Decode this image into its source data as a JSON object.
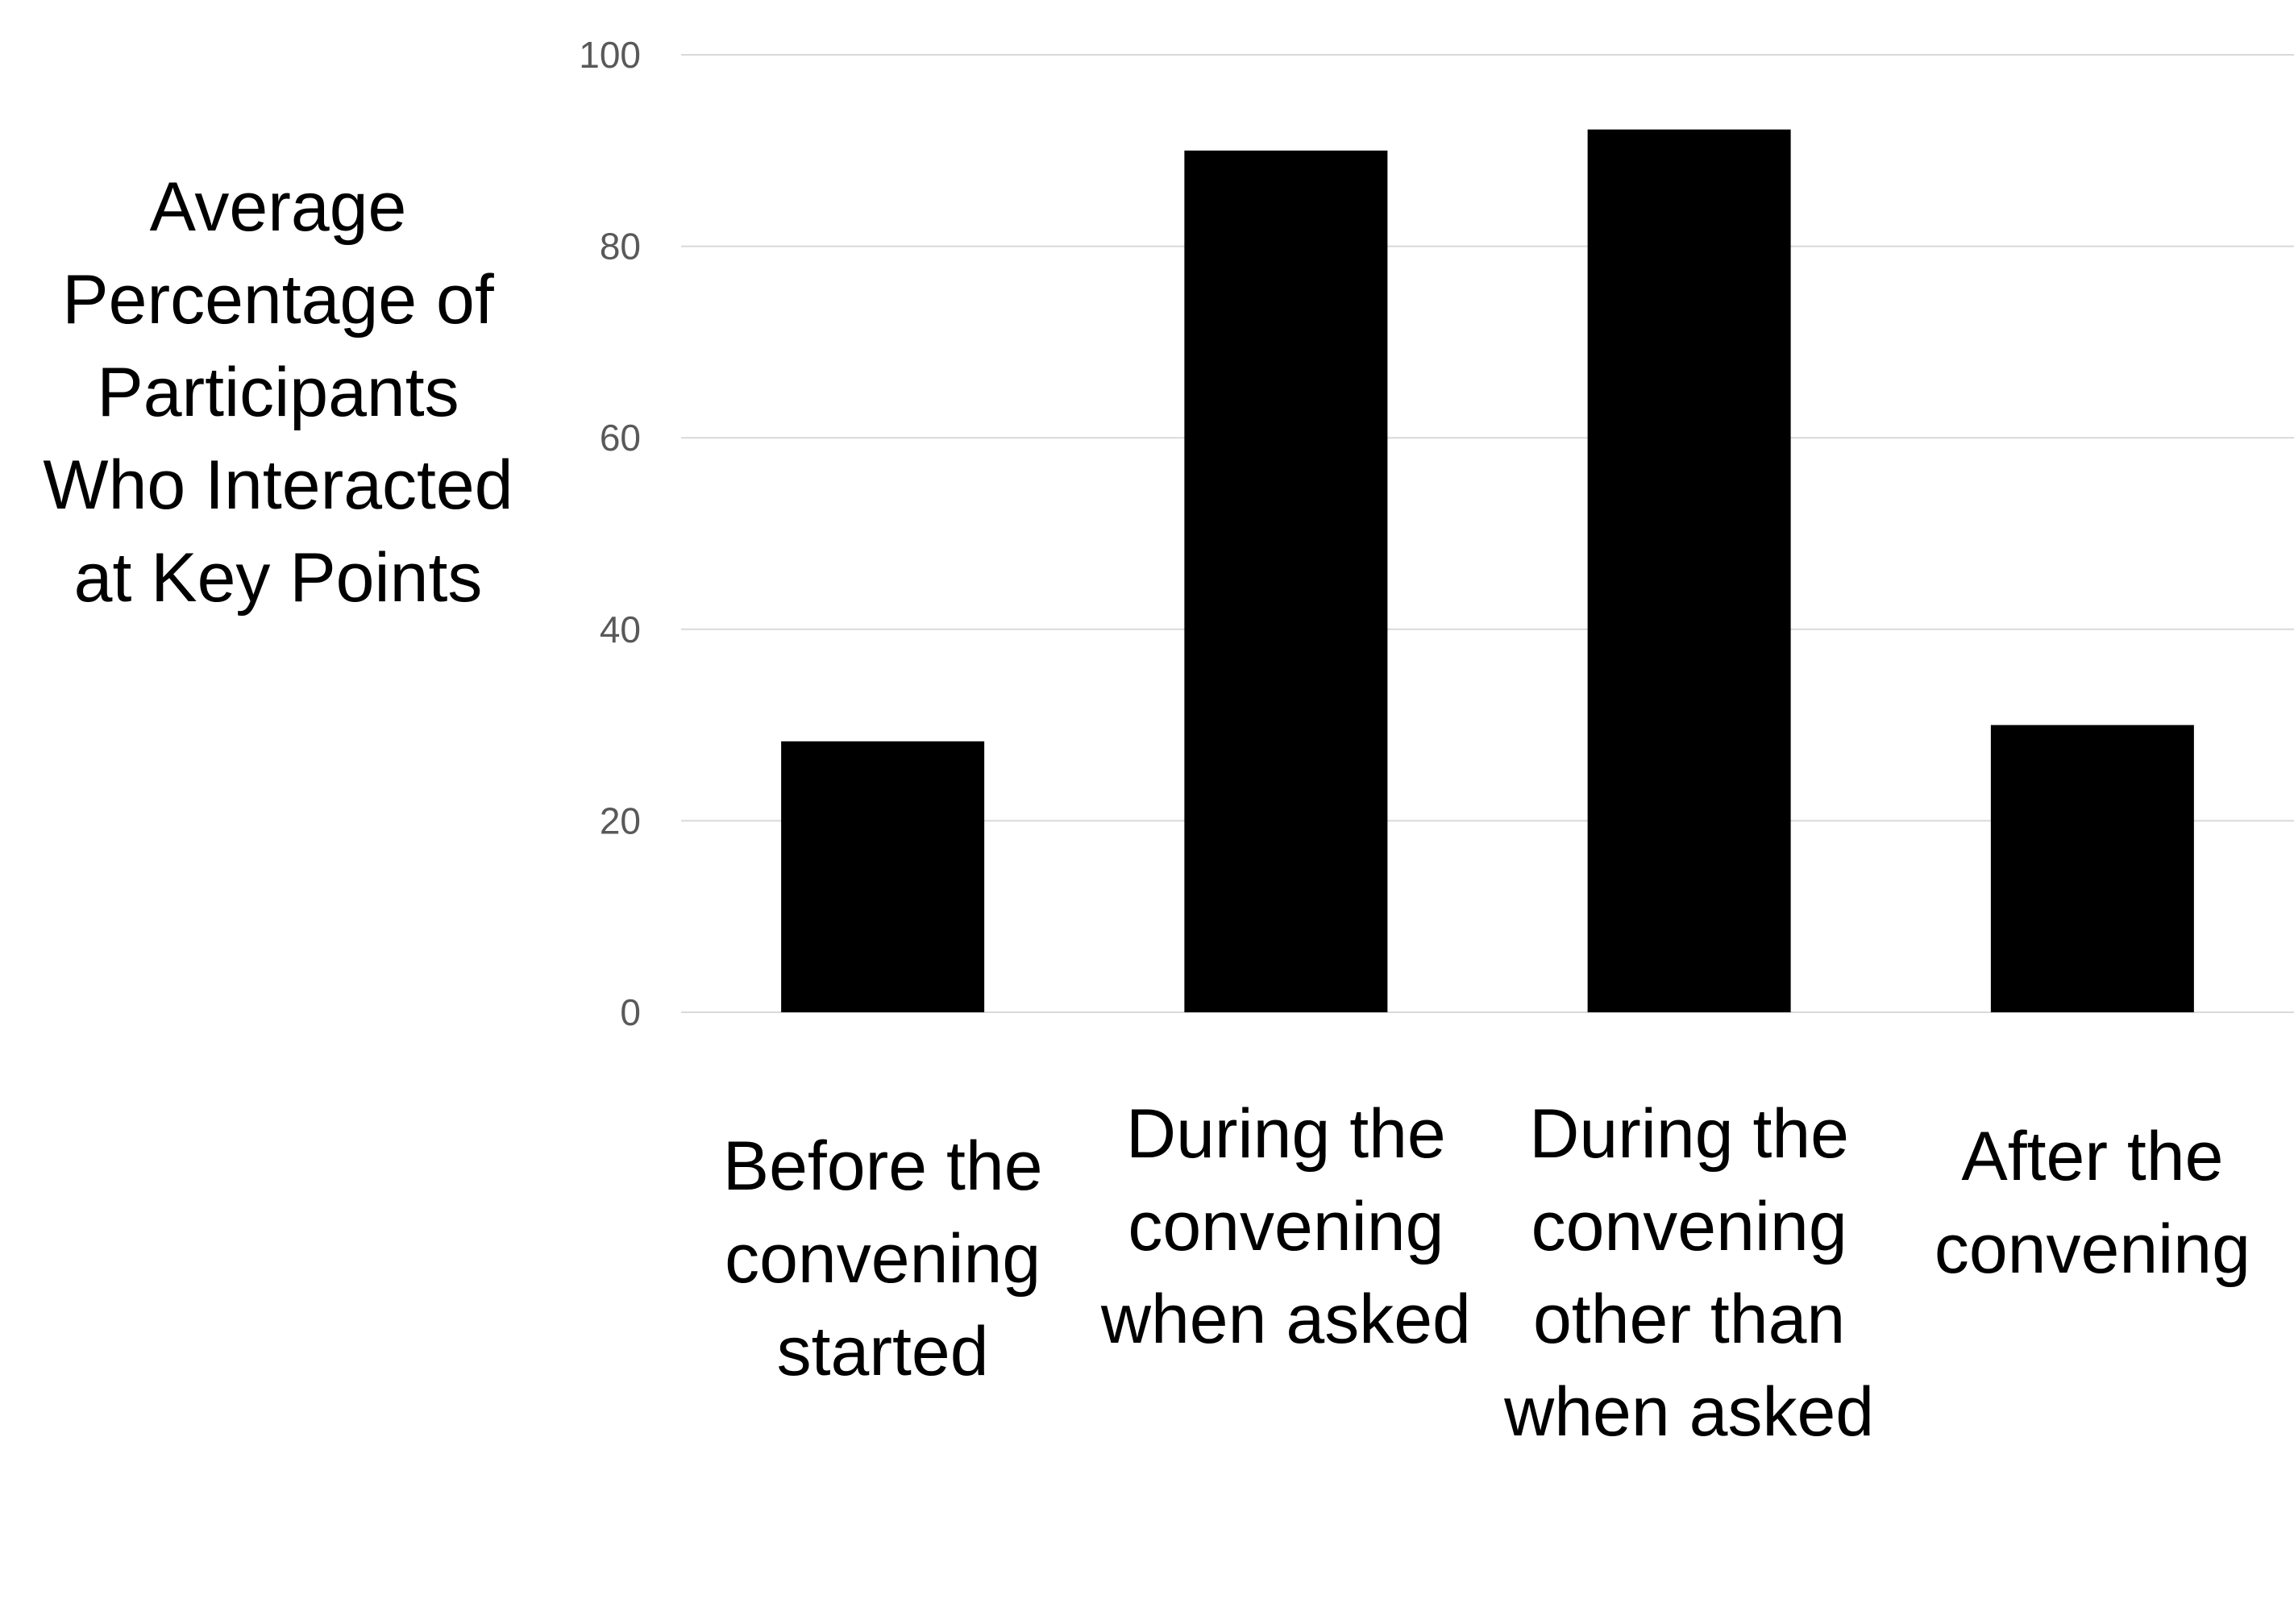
{
  "chart_data": {
    "type": "bar",
    "title": "",
    "ylabel": "Average Percentage of Participants Who Interacted at Key Points",
    "xlabel": "",
    "categories": [
      "Before the convening started",
      "During the convening when asked",
      "During the convening other than when asked",
      "After the convening"
    ],
    "values": [
      28.3,
      90,
      92.2,
      30
    ],
    "ylim": [
      0,
      100
    ],
    "yticks": [
      0,
      20,
      40,
      60,
      80,
      100
    ],
    "grid": "horizontal",
    "legend": "none",
    "bar_color": "#000000",
    "grid_color": "#d9d9d9"
  }
}
